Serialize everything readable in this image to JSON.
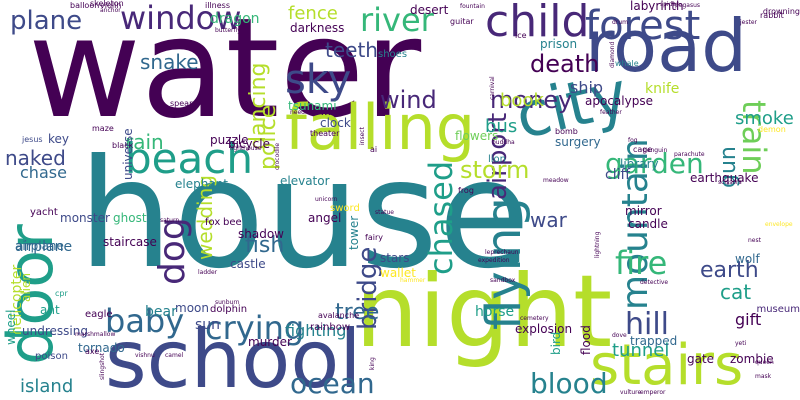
{
  "palette": {
    "purple": "#440154",
    "indigo": "#482878",
    "navy": "#3e4a89",
    "blue": "#31688e",
    "teal": "#26828e",
    "seagreen": "#1f9e89",
    "green": "#35b779",
    "lightgreen": "#6ece58",
    "lime": "#b5de2b",
    "yellow": "#fde725"
  },
  "words": [
    {
      "text": "water",
      "color": "purple"
    },
    {
      "text": "house",
      "color": "teal"
    },
    {
      "text": "car",
      "color": "lightgreen"
    },
    {
      "text": "night",
      "color": "lime"
    },
    {
      "text": "school",
      "color": "navy"
    },
    {
      "text": "road",
      "color": "navy"
    },
    {
      "text": "door",
      "color": "seagreen"
    },
    {
      "text": "city",
      "color": "teal"
    },
    {
      "text": "beach",
      "color": "seagreen"
    },
    {
      "text": "falling",
      "color": "lime"
    },
    {
      "text": "stairs",
      "color": "lime"
    },
    {
      "text": "forest",
      "color": "navy"
    },
    {
      "text": "child",
      "color": "indigo"
    },
    {
      "text": "window",
      "color": "indigo"
    },
    {
      "text": "sky",
      "color": "navy"
    },
    {
      "text": "plane",
      "color": "navy"
    },
    {
      "text": "river",
      "color": "green"
    },
    {
      "text": "flying",
      "color": "teal"
    },
    {
      "text": "mountain",
      "color": "teal"
    },
    {
      "text": "crying",
      "color": "blue"
    },
    {
      "text": "baby",
      "color": "blue"
    },
    {
      "text": "dog",
      "color": "indigo"
    },
    {
      "text": "chased",
      "color": "seagreen"
    },
    {
      "text": "blood",
      "color": "teal"
    },
    {
      "text": "ocean",
      "color": "blue"
    },
    {
      "text": "fire",
      "color": "green"
    },
    {
      "text": "train",
      "color": "lightgreen"
    },
    {
      "text": "airport",
      "color": "indigo"
    },
    {
      "text": "wind",
      "color": "indigo"
    },
    {
      "text": "money",
      "color": "indigo"
    },
    {
      "text": "garden",
      "color": "green"
    },
    {
      "text": "bridge",
      "color": "navy"
    },
    {
      "text": "death",
      "color": "purple"
    },
    {
      "text": "hill",
      "color": "navy"
    },
    {
      "text": "tree",
      "color": "blue"
    },
    {
      "text": "earth",
      "color": "navy"
    },
    {
      "text": "police",
      "color": "lime"
    },
    {
      "text": "gun",
      "color": "teal"
    },
    {
      "text": "storm",
      "color": "lime"
    },
    {
      "text": "naked",
      "color": "navy"
    },
    {
      "text": "fence",
      "color": "lime"
    },
    {
      "text": "bus",
      "color": "seagreen"
    },
    {
      "text": "teeth",
      "color": "navy"
    },
    {
      "text": "snake",
      "color": "blue"
    },
    {
      "text": "island",
      "color": "teal"
    },
    {
      "text": "rain",
      "color": "green"
    },
    {
      "text": "war",
      "color": "navy"
    },
    {
      "text": "dancing",
      "color": "lime"
    },
    {
      "text": "wedding",
      "color": "lime"
    },
    {
      "text": "tunnel",
      "color": "seagreen"
    },
    {
      "text": "fish",
      "color": "blue"
    },
    {
      "text": "cat",
      "color": "seagreen"
    },
    {
      "text": "book",
      "color": "lime"
    },
    {
      "text": "smoke",
      "color": "seagreen"
    },
    {
      "text": "knife",
      "color": "lime"
    },
    {
      "text": "ship",
      "color": "navy"
    },
    {
      "text": "fighting",
      "color": "teal"
    },
    {
      "text": "gift",
      "color": "purple"
    },
    {
      "text": "sun",
      "color": "navy"
    },
    {
      "text": "horse",
      "color": "seagreen"
    },
    {
      "text": "castle",
      "color": "navy"
    },
    {
      "text": "chase",
      "color": "blue"
    },
    {
      "text": "airplane",
      "color": "blue"
    },
    {
      "text": "monster",
      "color": "navy"
    },
    {
      "text": "cliff",
      "color": "navy"
    },
    {
      "text": "moon",
      "color": "navy"
    },
    {
      "text": "wolf",
      "color": "blue"
    },
    {
      "text": "bear",
      "color": "teal"
    },
    {
      "text": "elevator",
      "color": "teal"
    },
    {
      "text": "stars",
      "color": "navy"
    },
    {
      "text": "ghost",
      "color": "green"
    },
    {
      "text": "dragon",
      "color": "green"
    },
    {
      "text": "clock",
      "color": "navy"
    },
    {
      "text": "undressing",
      "color": "navy"
    },
    {
      "text": "surgery",
      "color": "blue"
    },
    {
      "text": "zombie",
      "color": "purple"
    },
    {
      "text": "museum",
      "color": "indigo"
    },
    {
      "text": "apocalypse",
      "color": "purple"
    },
    {
      "text": "elephant",
      "color": "teal"
    },
    {
      "text": "flowers",
      "color": "lightgreen"
    },
    {
      "text": "tsunami",
      "color": "green"
    },
    {
      "text": "airplane",
      "color": "blue"
    },
    {
      "text": "darkness",
      "color": "purple"
    },
    {
      "text": "bicycle",
      "color": "purple"
    },
    {
      "text": "puzzle",
      "color": "purple"
    },
    {
      "text": "universe",
      "color": "navy"
    },
    {
      "text": "explosion",
      "color": "purple"
    },
    {
      "text": "trapped",
      "color": "blue"
    },
    {
      "text": "library",
      "color": "teal"
    },
    {
      "text": "desert",
      "color": "purple"
    },
    {
      "text": "labyrinth",
      "color": "purple"
    },
    {
      "text": "prison",
      "color": "teal"
    },
    {
      "text": "staircase",
      "color": "purple"
    },
    {
      "text": "shadow",
      "color": "purple"
    },
    {
      "text": "angel",
      "color": "purple"
    },
    {
      "text": "murder",
      "color": "purple"
    },
    {
      "text": "tornado",
      "color": "blue"
    },
    {
      "text": "eagle",
      "color": "purple"
    },
    {
      "text": "tower",
      "color": "teal"
    },
    {
      "text": "wallet",
      "color": "yellow"
    },
    {
      "text": "candle",
      "color": "purple"
    },
    {
      "text": "mirror",
      "color": "purple"
    },
    {
      "text": "earthquake",
      "color": "purple"
    },
    {
      "text": "gate",
      "color": "purple"
    },
    {
      "text": "flood",
      "color": "purple"
    },
    {
      "text": "bird",
      "color": "seagreen"
    },
    {
      "text": "rainbow",
      "color": "purple"
    },
    {
      "text": "helicopter",
      "color": "lime"
    },
    {
      "text": "wheel",
      "color": "seagreen"
    },
    {
      "text": "alien",
      "color": "lime"
    },
    {
      "text": "ant",
      "color": "seagreen"
    },
    {
      "text": "poison",
      "color": "navy"
    },
    {
      "text": "yacht",
      "color": "purple"
    },
    {
      "text": "key",
      "color": "navy"
    },
    {
      "text": "jesus",
      "color": "navy"
    },
    {
      "text": "maze",
      "color": "purple"
    },
    {
      "text": "black",
      "color": "purple"
    },
    {
      "text": "spear",
      "color": "purple"
    },
    {
      "text": "crossbow",
      "color": "purple"
    },
    {
      "text": "balloon",
      "color": "purple"
    },
    {
      "text": "violin",
      "color": "purple"
    },
    {
      "text": "illness",
      "color": "purple"
    },
    {
      "text": "butterfly",
      "color": "purple"
    },
    {
      "text": "fountain",
      "color": "purple"
    },
    {
      "text": "shoes",
      "color": "teal"
    },
    {
      "text": "wine",
      "color": "purple"
    },
    {
      "text": "theater",
      "color": "purple"
    },
    {
      "text": "lion",
      "color": "teal"
    },
    {
      "text": "frog",
      "color": "purple"
    },
    {
      "text": "sword",
      "color": "yellow"
    },
    {
      "text": "fairy",
      "color": "purple"
    },
    {
      "text": "bee",
      "color": "purple"
    },
    {
      "text": "fox",
      "color": "purple"
    },
    {
      "text": "dolphin",
      "color": "purple"
    },
    {
      "text": "avalanche",
      "color": "purple"
    },
    {
      "text": "cpr",
      "color": "seagreen"
    },
    {
      "text": "ice",
      "color": "purple"
    },
    {
      "text": "drum",
      "color": "purple"
    },
    {
      "text": "drowning",
      "color": "purple"
    },
    {
      "text": "rabbit",
      "color": "purple"
    },
    {
      "text": "guitar",
      "color": "purple"
    },
    {
      "text": "carnival",
      "color": "purple"
    },
    {
      "text": "bomb",
      "color": "purple"
    },
    {
      "text": "fog",
      "color": "purple"
    },
    {
      "text": "cage",
      "color": "purple"
    },
    {
      "text": "penguin",
      "color": "purple"
    },
    {
      "text": "demon",
      "color": "yellow"
    },
    {
      "text": "whale",
      "color": "teal"
    },
    {
      "text": "diamond",
      "color": "purple"
    },
    {
      "text": "skeleton",
      "color": "purple"
    },
    {
      "text": "anchor",
      "color": "purple"
    },
    {
      "text": "lighthouse",
      "color": "purple"
    },
    {
      "text": "crocodile",
      "color": "purple"
    },
    {
      "text": "needle",
      "color": "purple"
    },
    {
      "text": "unicorn",
      "color": "purple"
    },
    {
      "text": "statue",
      "color": "purple"
    },
    {
      "text": "leprechaun",
      "color": "purple"
    },
    {
      "text": "meadow",
      "color": "purple"
    },
    {
      "text": "expedition",
      "color": "purple"
    },
    {
      "text": "sandbox",
      "color": "purple"
    },
    {
      "text": "camel",
      "color": "purple"
    },
    {
      "text": "king",
      "color": "purple"
    },
    {
      "text": "vishnu",
      "color": "purple"
    },
    {
      "text": "marshmallow",
      "color": "purple"
    },
    {
      "text": "axe",
      "color": "purple"
    },
    {
      "text": "slingshot",
      "color": "purple"
    },
    {
      "text": "emperor",
      "color": "purple"
    },
    {
      "text": "dove",
      "color": "purple"
    },
    {
      "text": "vulture",
      "color": "purple"
    },
    {
      "text": "queen",
      "color": "purple"
    },
    {
      "text": "yeti",
      "color": "purple"
    },
    {
      "text": "mask",
      "color": "purple"
    },
    {
      "text": "cemetery",
      "color": "purple"
    },
    {
      "text": "detective",
      "color": "purple"
    },
    {
      "text": "hammer",
      "color": "yellow"
    },
    {
      "text": "parachute",
      "color": "purple"
    },
    {
      "text": "spider",
      "color": "purple"
    },
    {
      "text": "pegasus",
      "color": "purple"
    },
    {
      "text": "feather",
      "color": "purple"
    },
    {
      "text": "jester",
      "color": "purple"
    },
    {
      "text": "envelope",
      "color": "yellow"
    },
    {
      "text": "nest",
      "color": "purple"
    },
    {
      "text": "scissors",
      "color": "purple"
    },
    {
      "text": "buddha",
      "color": "purple"
    },
    {
      "text": "insect",
      "color": "purple"
    },
    {
      "text": "ladder",
      "color": "purple"
    },
    {
      "text": "sunburn",
      "color": "purple"
    },
    {
      "text": "lightning",
      "color": "purple"
    },
    {
      "text": "saturn",
      "color": "purple"
    },
    {
      "text": "ai",
      "color": "purple"
    },
    {
      "text": "sphinx",
      "color": "purple"
    },
    {
      "text": "bell",
      "color": "purple"
    },
    {
      "text": "magic",
      "color": "purple"
    },
    {
      "text": "supermarket",
      "color": "purple"
    },
    {
      "text": "witch",
      "color": "purple"
    },
    {
      "text": "robot",
      "color": "purple"
    },
    {
      "text": "mouse",
      "color": "purple"
    },
    {
      "text": "flag",
      "color": "purple"
    },
    {
      "text": "globe",
      "color": "purple"
    },
    {
      "text": "pearl",
      "color": "purple"
    }
  ]
}
